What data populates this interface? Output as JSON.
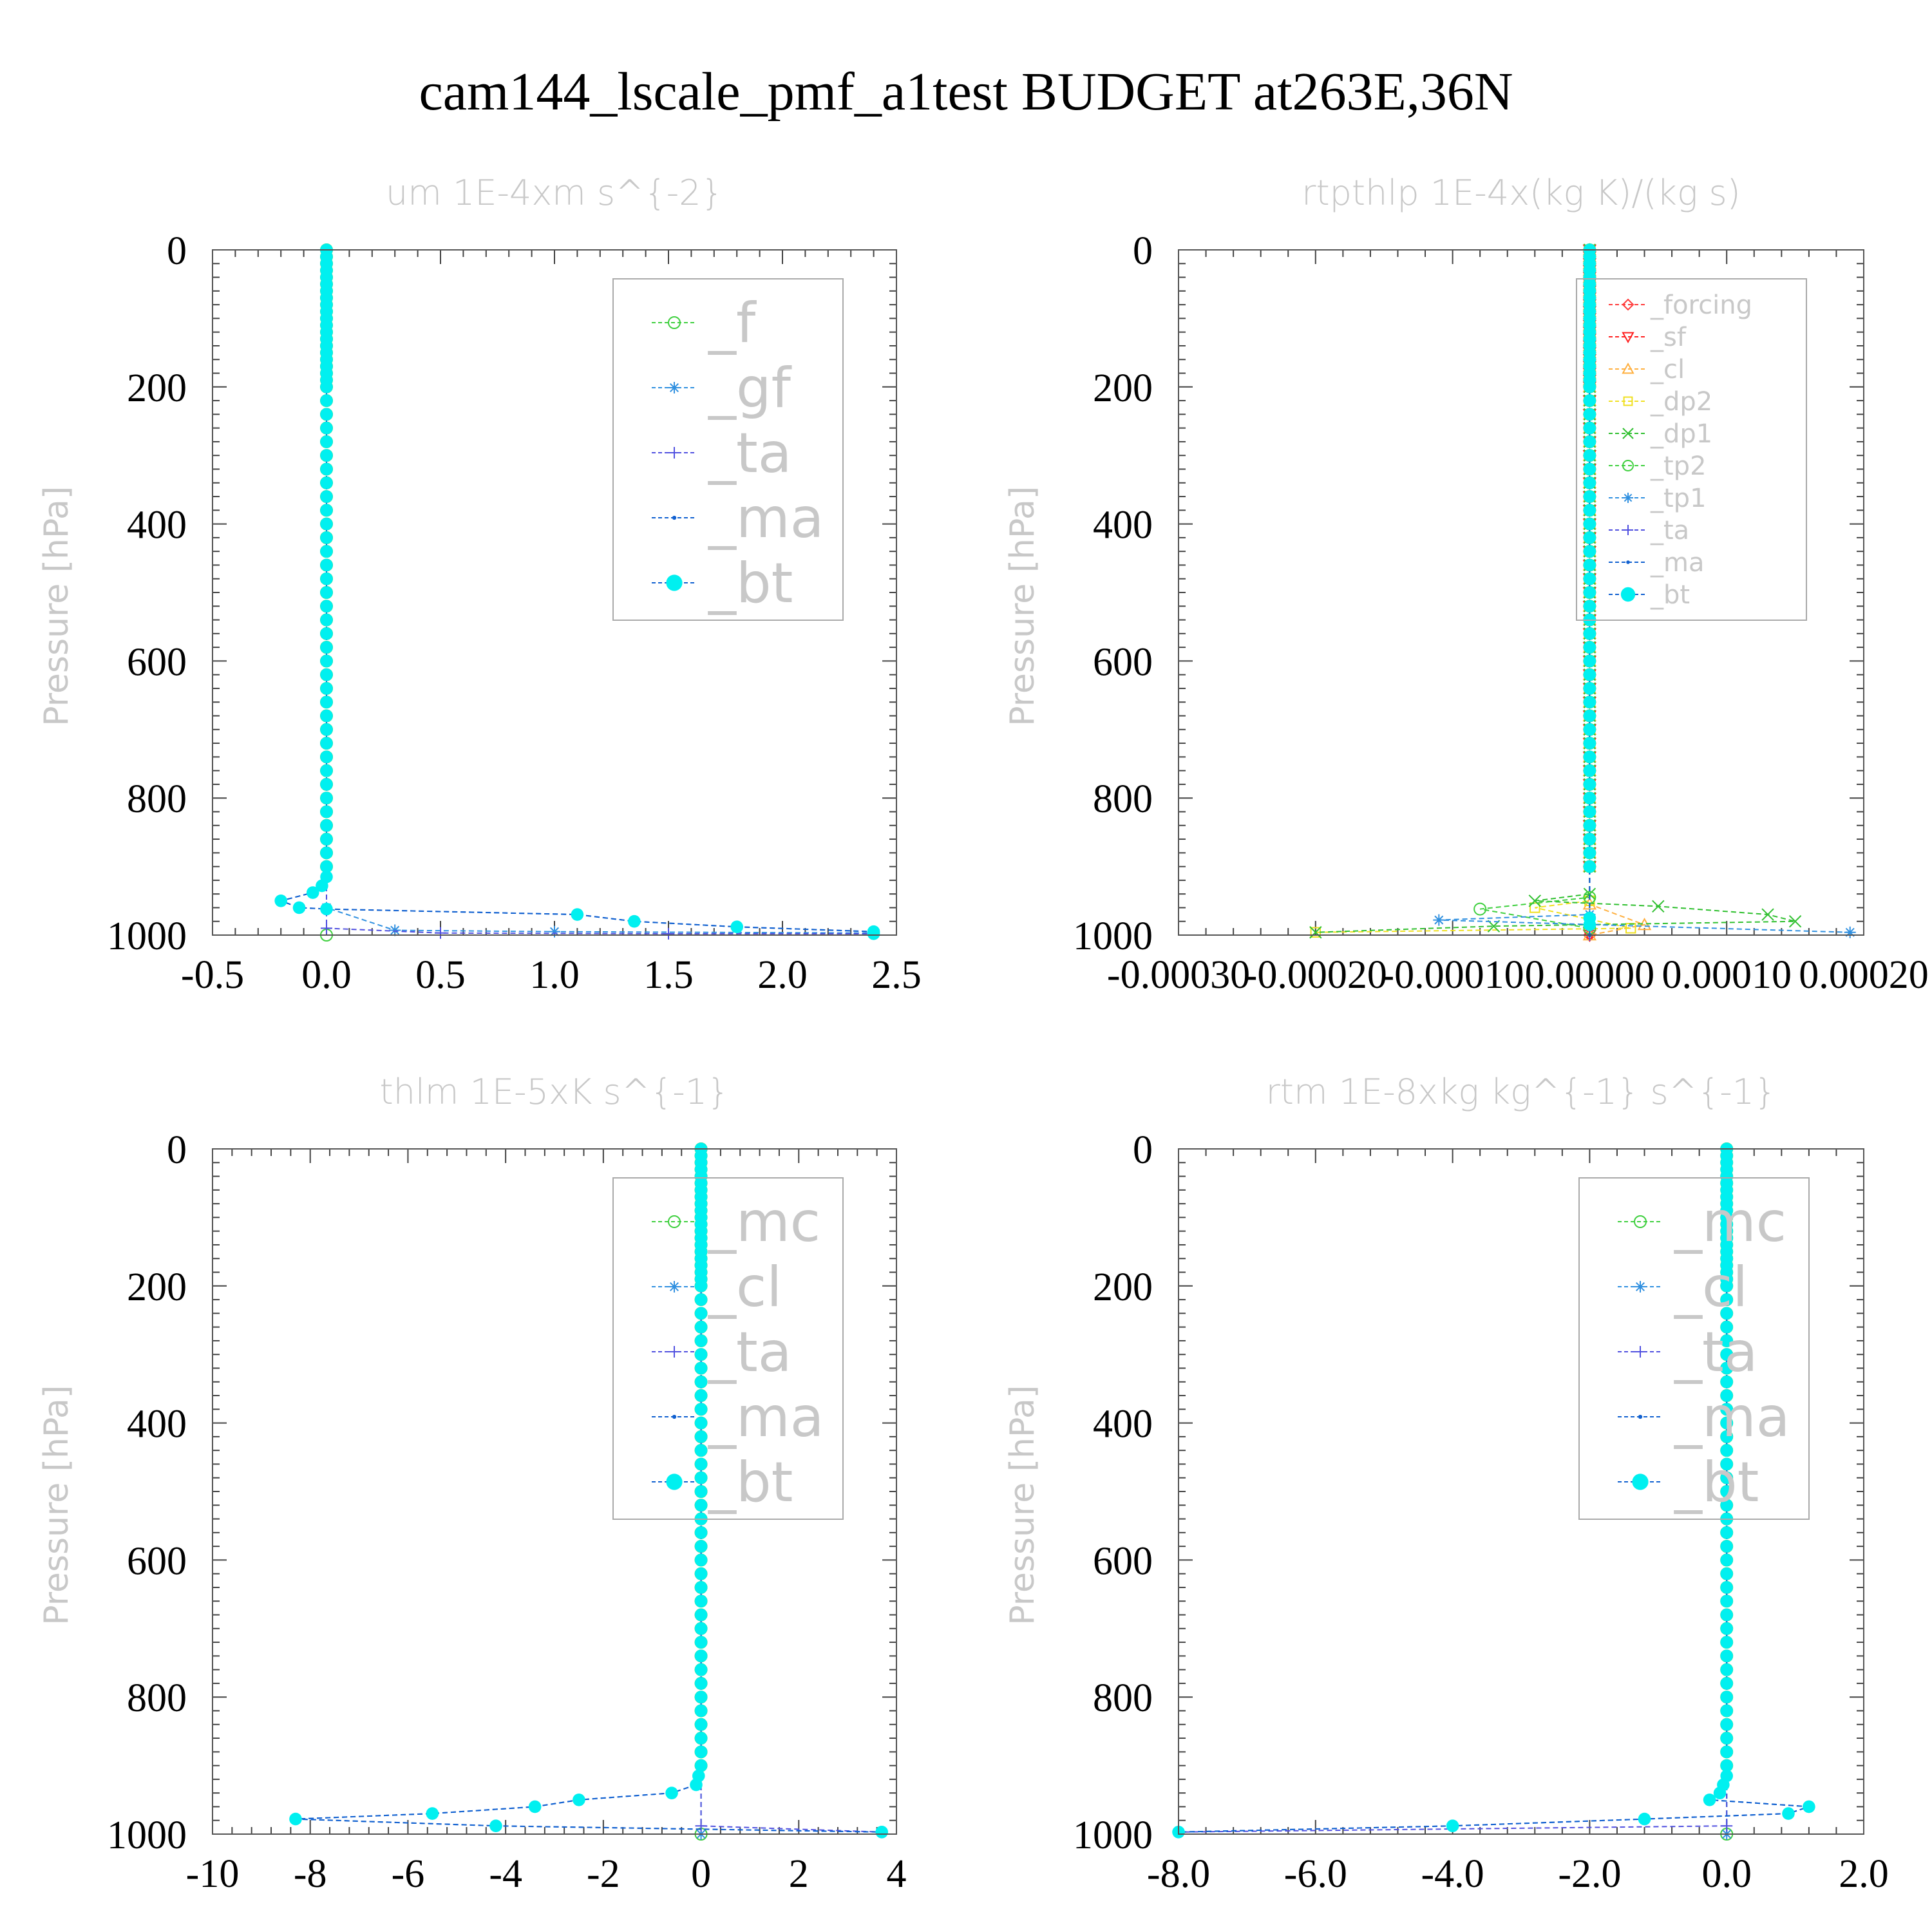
{
  "title": "cam144_lscale_pmf_a1test  BUDGET at263E,36N",
  "colors": {
    "forcing": "#ff3b3b",
    "sf": "#ff2020",
    "cl_orange": "#ffb040",
    "dp2": "#f0e020",
    "dp1": "#30c030",
    "f_green": "#40d040",
    "gf_blue": "#3090e0",
    "ta": "#5050e0",
    "ma": "#1060d0",
    "bt": "#00f0f0"
  },
  "chart_data": [
    {
      "type": "line",
      "title": "um   1E-4xm s^{-2}",
      "ylabel": "Pressure [hPa]",
      "y_inverted": true,
      "ylim": [
        0,
        1000
      ],
      "xlim": [
        -0.5,
        2.5
      ],
      "xticks": [
        "-0.5",
        "0.0",
        "0.5",
        "1.0",
        "1.5",
        "2.0",
        "2.5"
      ],
      "xtick_values": [
        -0.5,
        0.0,
        0.5,
        1.0,
        1.5,
        2.0,
        2.5
      ],
      "yticks": [
        "0",
        "200",
        "400",
        "600",
        "800",
        "1000"
      ],
      "legend_position": "top-right",
      "legend_font": "large",
      "series": [
        {
          "name": "_f",
          "color_key": "f_green",
          "marker": "circle-open",
          "points": [
            [
              0.0,
              0
            ],
            [
              0.0,
              1000
            ]
          ]
        },
        {
          "name": "_gf",
          "color_key": "gf_blue",
          "marker": "asterisk",
          "points": [
            [
              0.0,
              0
            ],
            [
              0.0,
              960
            ],
            [
              0.3,
              993
            ],
            [
              1.0,
              995
            ],
            [
              2.4,
              997
            ]
          ]
        },
        {
          "name": "_ta",
          "color_key": "ta",
          "marker": "plus",
          "points": [
            [
              0.0,
              0
            ],
            [
              0.0,
              990
            ],
            [
              0.5,
              997
            ],
            [
              1.5,
              998
            ],
            [
              2.4,
              998
            ]
          ]
        },
        {
          "name": "_ma",
          "color_key": "ma",
          "marker": "dot",
          "points": [
            [
              0.0,
              0
            ],
            [
              0.0,
              900
            ],
            [
              0.0,
              915
            ],
            [
              -0.02,
              928
            ],
            [
              -0.06,
              938
            ],
            [
              -0.2,
              950
            ],
            [
              -0.12,
              960
            ],
            [
              0.0,
              962
            ],
            [
              1.1,
              970
            ],
            [
              1.35,
              980
            ],
            [
              1.8,
              988
            ],
            [
              2.4,
              995
            ],
            [
              2.4,
              998
            ]
          ]
        },
        {
          "name": "_bt",
          "color_key": "bt",
          "marker": "filled-circle",
          "points": [
            [
              0.0,
              0
            ],
            [
              0.0,
              900
            ],
            [
              0.0,
              915
            ],
            [
              -0.02,
              928
            ],
            [
              -0.06,
              938
            ],
            [
              -0.2,
              950
            ],
            [
              -0.12,
              960
            ],
            [
              0.0,
              962
            ],
            [
              1.1,
              970
            ],
            [
              1.35,
              980
            ],
            [
              1.8,
              988
            ],
            [
              2.4,
              995
            ],
            [
              2.4,
              998
            ]
          ]
        }
      ]
    },
    {
      "type": "line",
      "title": "rtpthlp   1E-4x(kg K)/(kg s)",
      "ylabel": "Pressure [hPa]",
      "y_inverted": true,
      "ylim": [
        0,
        1000
      ],
      "xlim": [
        -0.0003,
        0.0002
      ],
      "xticks": [
        "-0.00030",
        "-0.00020",
        "-0.00010",
        "0.00000",
        "0.00010",
        "0.00020"
      ],
      "xtick_values": [
        -0.0003,
        -0.0002,
        -0.0001,
        0.0,
        0.0001,
        0.0002
      ],
      "yticks": [
        "0",
        "200",
        "400",
        "600",
        "800",
        "1000"
      ],
      "legend_position": "top-right",
      "legend_font": "small",
      "series": [
        {
          "name": "_forcing",
          "color_key": "forcing",
          "marker": "diamond-open",
          "points": [
            [
              0.0,
              0
            ],
            [
              0.0,
              1000
            ]
          ]
        },
        {
          "name": "_sf",
          "color_key": "sf",
          "marker": "triangle-down-open",
          "points": [
            [
              0.0,
              0
            ],
            [
              0.0,
              1000
            ]
          ]
        },
        {
          "name": "_cl",
          "color_key": "cl_orange",
          "marker": "triangle-open",
          "points": [
            [
              0.0,
              0
            ],
            [
              0.0,
              955
            ],
            [
              4e-05,
              985
            ],
            [
              0.0,
              1000
            ]
          ]
        },
        {
          "name": "_dp2",
          "color_key": "dp2",
          "marker": "square-open",
          "points": [
            [
              0.0,
              0
            ],
            [
              0.0,
              950
            ],
            [
              -4e-05,
              960
            ],
            [
              3e-05,
              990
            ],
            [
              -0.0002,
              996
            ]
          ]
        },
        {
          "name": "_dp1",
          "color_key": "dp1",
          "marker": "cross",
          "points": [
            [
              0.0,
              0
            ],
            [
              0.0,
              940
            ],
            [
              -4e-05,
              950
            ],
            [
              5e-05,
              958
            ],
            [
              0.00013,
              970
            ],
            [
              0.00015,
              980
            ],
            [
              -7e-05,
              987
            ],
            [
              -0.0002,
              996
            ]
          ]
        },
        {
          "name": "_tp2",
          "color_key": "f_green",
          "marker": "circle-open",
          "points": [
            [
              0.0,
              0
            ],
            [
              0.0,
              945
            ],
            [
              -8e-05,
              962
            ],
            [
              0.0,
              990
            ]
          ]
        },
        {
          "name": "_tp1",
          "color_key": "gf_blue",
          "marker": "asterisk",
          "points": [
            [
              0.0,
              0
            ],
            [
              0.0,
              970
            ],
            [
              -0.00011,
              978
            ],
            [
              0.00019,
              996
            ]
          ]
        },
        {
          "name": "_ta",
          "color_key": "ta",
          "marker": "plus",
          "points": [
            [
              0.0,
              0
            ],
            [
              0.0,
              1000
            ]
          ]
        },
        {
          "name": "_ma",
          "color_key": "ma",
          "marker": "dot",
          "points": [
            [
              0.0,
              0
            ],
            [
              0.0,
              1000
            ]
          ]
        },
        {
          "name": "_bt",
          "color_key": "bt",
          "marker": "filled-circle",
          "points": [
            [
              0.0,
              0
            ],
            [
              0.0,
              975
            ],
            [
              0.0,
              985
            ]
          ]
        }
      ]
    },
    {
      "type": "line",
      "title": "thlm   1E-5xK s^{-1}",
      "ylabel": "Pressure [hPa]",
      "y_inverted": true,
      "ylim": [
        0,
        1000
      ],
      "xlim": [
        -10,
        4
      ],
      "xticks": [
        "-10",
        "-8",
        "-6",
        "-4",
        "-2",
        "0",
        "2",
        "4"
      ],
      "xtick_values": [
        -10,
        -8,
        -6,
        -4,
        -2,
        0,
        2,
        4
      ],
      "yticks": [
        "0",
        "200",
        "400",
        "600",
        "800",
        "1000"
      ],
      "legend_position": "top-right",
      "legend_font": "large",
      "series": [
        {
          "name": "_mc",
          "color_key": "f_green",
          "marker": "circle-open",
          "points": [
            [
              0.0,
              0
            ],
            [
              0.0,
              1000
            ]
          ]
        },
        {
          "name": "_cl",
          "color_key": "gf_blue",
          "marker": "asterisk",
          "points": [
            [
              0.0,
              0
            ],
            [
              0.0,
              1000
            ]
          ]
        },
        {
          "name": "_ta",
          "color_key": "ta",
          "marker": "plus",
          "points": [
            [
              0.0,
              0
            ],
            [
              0.0,
              988
            ],
            [
              3.7,
              997
            ]
          ]
        },
        {
          "name": "_ma",
          "color_key": "ma",
          "marker": "dot",
          "points": [
            [
              0.0,
              0
            ],
            [
              0.0,
              900
            ],
            [
              -0.05,
              915
            ],
            [
              -0.1,
              928
            ],
            [
              -0.6,
              940
            ],
            [
              -2.5,
              950
            ],
            [
              -3.4,
              960
            ],
            [
              -5.5,
              970
            ],
            [
              -8.3,
              978
            ],
            [
              -4.2,
              988
            ],
            [
              3.7,
              997
            ]
          ]
        },
        {
          "name": "_bt",
          "color_key": "bt",
          "marker": "filled-circle",
          "points": [
            [
              0.0,
              0
            ],
            [
              0.0,
              900
            ],
            [
              -0.05,
              915
            ],
            [
              -0.1,
              928
            ],
            [
              -0.6,
              940
            ],
            [
              -2.5,
              950
            ],
            [
              -3.4,
              960
            ],
            [
              -5.5,
              970
            ],
            [
              -8.3,
              978
            ],
            [
              -4.2,
              988
            ],
            [
              3.7,
              997
            ]
          ]
        }
      ]
    },
    {
      "type": "line",
      "title": "rtm   1E-8xkg kg^{-1} s^{-1}",
      "ylabel": "Pressure [hPa]",
      "y_inverted": true,
      "ylim": [
        0,
        1000
      ],
      "xlim": [
        -8.0,
        2.0
      ],
      "xticks": [
        "-8.0",
        "-6.0",
        "-4.0",
        "-2.0",
        "0.0",
        "2.0"
      ],
      "xtick_values": [
        -8.0,
        -6.0,
        -4.0,
        -2.0,
        0.0,
        2.0
      ],
      "yticks": [
        "0",
        "200",
        "400",
        "600",
        "800",
        "1000"
      ],
      "legend_position": "top-right",
      "legend_font": "large",
      "series": [
        {
          "name": "_mc",
          "color_key": "f_green",
          "marker": "circle-open",
          "points": [
            [
              0.0,
              0
            ],
            [
              0.0,
              1000
            ]
          ]
        },
        {
          "name": "_cl",
          "color_key": "gf_blue",
          "marker": "asterisk",
          "points": [
            [
              0.0,
              0
            ],
            [
              0.0,
              1000
            ]
          ]
        },
        {
          "name": "_ta",
          "color_key": "ta",
          "marker": "plus",
          "points": [
            [
              0.0,
              0
            ],
            [
              0.0,
              988
            ],
            [
              -8.0,
              997
            ]
          ]
        },
        {
          "name": "_ma",
          "color_key": "ma",
          "marker": "dot",
          "points": [
            [
              0.0,
              0
            ],
            [
              0.0,
              900
            ],
            [
              0.0,
              915
            ],
            [
              -0.05,
              928
            ],
            [
              -0.1,
              940
            ],
            [
              -0.25,
              950
            ],
            [
              1.2,
              960
            ],
            [
              0.9,
              970
            ],
            [
              -1.2,
              978
            ],
            [
              -4.0,
              988
            ],
            [
              -8.0,
              997
            ]
          ]
        },
        {
          "name": "_bt",
          "color_key": "bt",
          "marker": "filled-circle",
          "points": [
            [
              0.0,
              0
            ],
            [
              0.0,
              900
            ],
            [
              0.0,
              915
            ],
            [
              -0.05,
              928
            ],
            [
              -0.1,
              940
            ],
            [
              -0.25,
              950
            ],
            [
              1.2,
              960
            ],
            [
              0.9,
              970
            ],
            [
              -1.2,
              978
            ],
            [
              -4.0,
              988
            ],
            [
              -8.0,
              997
            ]
          ]
        }
      ]
    }
  ]
}
